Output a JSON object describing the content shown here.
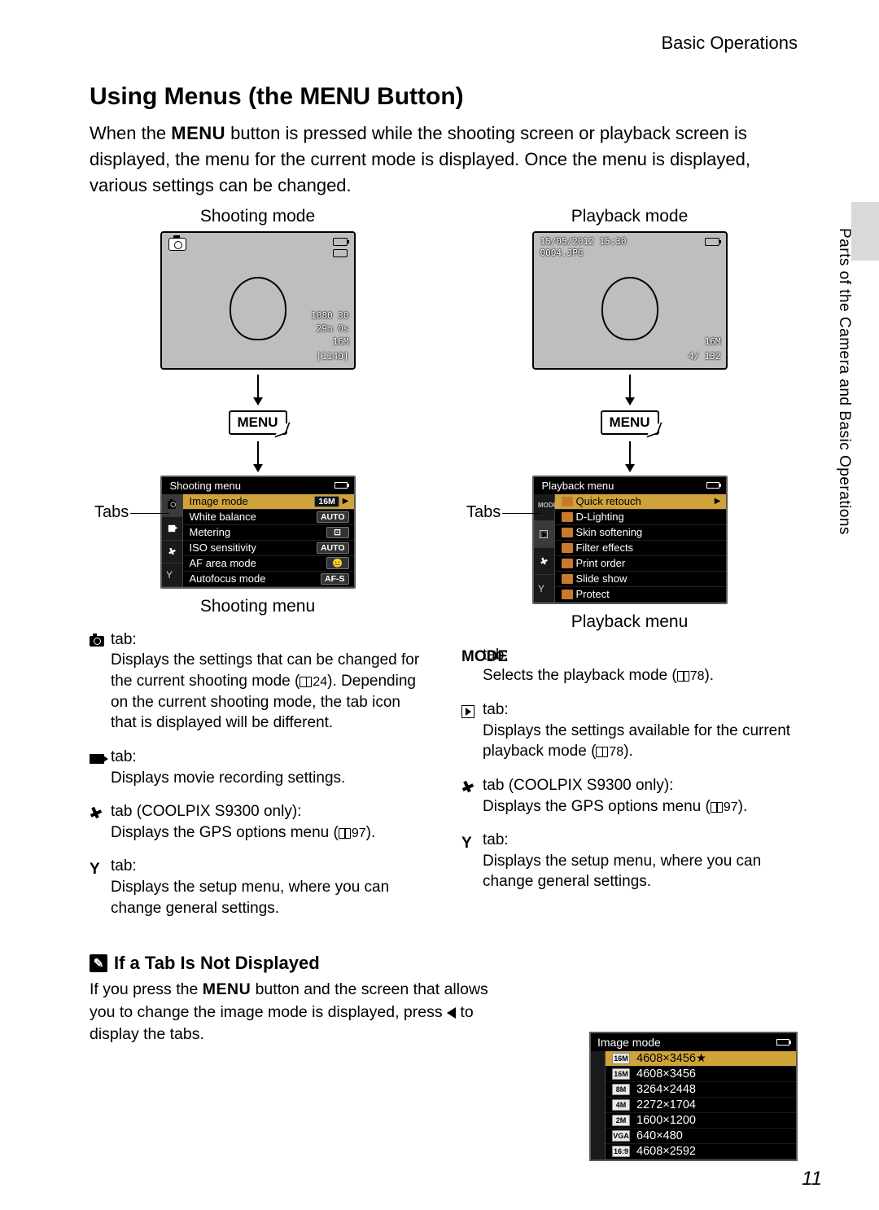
{
  "running_head": "Basic Operations",
  "side_text": "Parts of the Camera and Basic Operations",
  "page_number": "11",
  "title_pre": "Using Menus (the ",
  "title_menu": "MENU",
  "title_post": " Button)",
  "intro_pre": "When the ",
  "intro_menu": "MENU",
  "intro_post": " button is pressed while the shooting screen or playback screen is displayed, the menu for the current mode is displayed. Once the menu is displayed, various settings can be changed.",
  "shooting": {
    "mode_label": "Shooting mode",
    "screen": {
      "res_badge": "1080 30",
      "time": "29m 0s",
      "sz": "16M",
      "count": "[1140]"
    },
    "menu_btn": "MENU",
    "tabs_label": "Tabs",
    "panel_title": "Shooting menu",
    "rows": [
      {
        "label": "Image mode",
        "value": "16M",
        "selected": true
      },
      {
        "label": "White balance",
        "value": "AUTO"
      },
      {
        "label": "Metering",
        "value": "⊡"
      },
      {
        "label": "ISO sensitivity",
        "value": "AUTO"
      },
      {
        "label": "AF area mode",
        "value": "😐"
      },
      {
        "label": "Autofocus mode",
        "value": "AF-S"
      }
    ],
    "below_label": "Shooting menu"
  },
  "playback": {
    "mode_label": "Playback mode",
    "screen": {
      "date": "15/05/2012  15:30",
      "file": "0004.JPG",
      "sz": "16M",
      "count": "4/ 132"
    },
    "menu_btn": "MENU",
    "tabs_label": "Tabs",
    "panel_title": "Playback menu",
    "rows": [
      {
        "label": "Quick retouch",
        "selected": true
      },
      {
        "label": "D-Lighting"
      },
      {
        "label": "Skin softening"
      },
      {
        "label": "Filter effects"
      },
      {
        "label": "Print order"
      },
      {
        "label": "Slide show"
      },
      {
        "label": "Protect"
      }
    ],
    "below_label": "Playback menu"
  },
  "left_desc": {
    "cam": {
      "head": " tab:",
      "body_a": "Displays the settings that can be changed for the current shooting mode (",
      "ref": "24",
      "body_b": "). Depending on the current shooting mode, the tab icon that is displayed will be different."
    },
    "movie": {
      "head": " tab:",
      "body": "Displays movie recording settings."
    },
    "gps": {
      "head": " tab (COOLPIX S9300 only):",
      "body_a": "Displays the GPS options menu (",
      "ref": "97",
      "body_b": ")."
    },
    "setup": {
      "head": " tab:",
      "body": "Displays the setup menu, where you can change general settings."
    }
  },
  "right_desc": {
    "mode": {
      "head_pre": "MODE",
      "head": " tab:",
      "body_a": "Selects the playback mode (",
      "ref": "78",
      "body_b": ")."
    },
    "play": {
      "head": " tab:",
      "body_a": "Displays the settings available for the current playback mode (",
      "ref": "78",
      "body_b": ")."
    },
    "gps": {
      "head": " tab (COOLPIX S9300 only):",
      "body_a": "Displays the GPS options menu (",
      "ref": "97",
      "body_b": ")."
    },
    "setup": {
      "head": " tab:",
      "body": "Displays the setup menu, where you can change general settings."
    }
  },
  "note": {
    "title": "If a Tab Is Not Displayed",
    "body_a": "If you press the ",
    "body_menu": "MENU",
    "body_b": " button and the screen that allows you to change the image mode is displayed,  press ",
    "body_c": " to display the tabs."
  },
  "image_mode_panel": {
    "title": "Image mode",
    "rows": [
      {
        "badge": "16M",
        "label": "4608×3456★",
        "selected": true
      },
      {
        "badge": "16M",
        "label": "4608×3456"
      },
      {
        "badge": "8M",
        "label": "3264×2448"
      },
      {
        "badge": "4M",
        "label": "2272×1704"
      },
      {
        "badge": "2M",
        "label": "1600×1200"
      },
      {
        "badge": "VGA",
        "label": "640×480"
      },
      {
        "badge": "16:9",
        "label": "4608×2592"
      }
    ]
  }
}
